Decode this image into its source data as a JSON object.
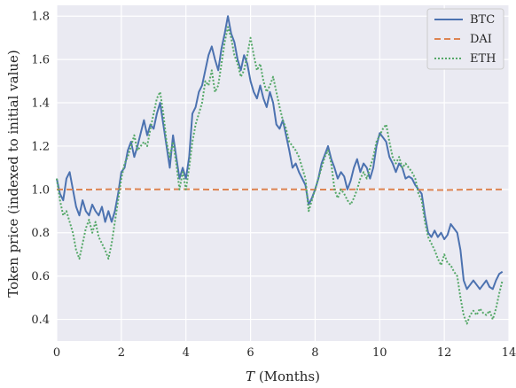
{
  "chart_data": {
    "type": "line",
    "title": "",
    "xlabel_var": "T",
    "xlabel_rest": " (Months)",
    "ylabel": "Token price (indexed to initial value)",
    "xlim": [
      0,
      14
    ],
    "ylim": [
      0.3,
      1.85
    ],
    "xticks": [
      "0",
      "2",
      "4",
      "6",
      "8",
      "10",
      "12",
      "14"
    ],
    "yticks": [
      "0.4",
      "0.6",
      "0.8",
      "1.0",
      "1.2",
      "1.4",
      "1.6",
      "1.8"
    ],
    "grid": true,
    "legend_position": "top-right",
    "series": [
      {
        "name": "BTC",
        "color": "#4c72b0",
        "style": "solid",
        "points": [
          [
            0,
            1.05
          ],
          [
            0.1,
            0.98
          ],
          [
            0.2,
            0.95
          ],
          [
            0.3,
            1.05
          ],
          [
            0.4,
            1.08
          ],
          [
            0.5,
            1.0
          ],
          [
            0.6,
            0.92
          ],
          [
            0.7,
            0.88
          ],
          [
            0.8,
            0.95
          ],
          [
            0.9,
            0.9
          ],
          [
            1.0,
            0.88
          ],
          [
            1.1,
            0.93
          ],
          [
            1.2,
            0.9
          ],
          [
            1.3,
            0.88
          ],
          [
            1.4,
            0.92
          ],
          [
            1.5,
            0.85
          ],
          [
            1.6,
            0.9
          ],
          [
            1.7,
            0.85
          ],
          [
            1.8,
            0.9
          ],
          [
            1.9,
            0.98
          ],
          [
            2.0,
            1.08
          ],
          [
            2.1,
            1.1
          ],
          [
            2.2,
            1.18
          ],
          [
            2.3,
            1.22
          ],
          [
            2.4,
            1.15
          ],
          [
            2.5,
            1.2
          ],
          [
            2.6,
            1.26
          ],
          [
            2.7,
            1.32
          ],
          [
            2.8,
            1.25
          ],
          [
            2.9,
            1.3
          ],
          [
            3.0,
            1.28
          ],
          [
            3.1,
            1.35
          ],
          [
            3.2,
            1.4
          ],
          [
            3.3,
            1.3
          ],
          [
            3.4,
            1.2
          ],
          [
            3.5,
            1.1
          ],
          [
            3.6,
            1.25
          ],
          [
            3.7,
            1.15
          ],
          [
            3.8,
            1.05
          ],
          [
            3.9,
            1.1
          ],
          [
            4.0,
            1.05
          ],
          [
            4.1,
            1.15
          ],
          [
            4.2,
            1.35
          ],
          [
            4.3,
            1.38
          ],
          [
            4.4,
            1.45
          ],
          [
            4.5,
            1.48
          ],
          [
            4.6,
            1.55
          ],
          [
            4.7,
            1.62
          ],
          [
            4.8,
            1.66
          ],
          [
            4.9,
            1.6
          ],
          [
            5.0,
            1.55
          ],
          [
            5.1,
            1.65
          ],
          [
            5.2,
            1.72
          ],
          [
            5.3,
            1.8
          ],
          [
            5.4,
            1.72
          ],
          [
            5.5,
            1.68
          ],
          [
            5.6,
            1.6
          ],
          [
            5.7,
            1.55
          ],
          [
            5.8,
            1.62
          ],
          [
            5.9,
            1.58
          ],
          [
            6.0,
            1.5
          ],
          [
            6.1,
            1.45
          ],
          [
            6.2,
            1.42
          ],
          [
            6.3,
            1.48
          ],
          [
            6.4,
            1.42
          ],
          [
            6.5,
            1.38
          ],
          [
            6.6,
            1.45
          ],
          [
            6.7,
            1.4
          ],
          [
            6.8,
            1.3
          ],
          [
            6.9,
            1.28
          ],
          [
            7.0,
            1.32
          ],
          [
            7.1,
            1.25
          ],
          [
            7.2,
            1.18
          ],
          [
            7.3,
            1.1
          ],
          [
            7.4,
            1.12
          ],
          [
            7.5,
            1.08
          ],
          [
            7.6,
            1.05
          ],
          [
            7.7,
            1.02
          ],
          [
            7.8,
            0.93
          ],
          [
            7.9,
            0.96
          ],
          [
            8.0,
            1.0
          ],
          [
            8.1,
            1.05
          ],
          [
            8.2,
            1.12
          ],
          [
            8.3,
            1.16
          ],
          [
            8.4,
            1.2
          ],
          [
            8.5,
            1.14
          ],
          [
            8.6,
            1.1
          ],
          [
            8.7,
            1.05
          ],
          [
            8.8,
            1.08
          ],
          [
            8.9,
            1.06
          ],
          [
            9.0,
            1.0
          ],
          [
            9.1,
            1.04
          ],
          [
            9.2,
            1.1
          ],
          [
            9.3,
            1.14
          ],
          [
            9.4,
            1.08
          ],
          [
            9.5,
            1.12
          ],
          [
            9.6,
            1.1
          ],
          [
            9.7,
            1.05
          ],
          [
            9.8,
            1.1
          ],
          [
            9.9,
            1.2
          ],
          [
            10.0,
            1.26
          ],
          [
            10.1,
            1.24
          ],
          [
            10.2,
            1.22
          ],
          [
            10.3,
            1.15
          ],
          [
            10.4,
            1.12
          ],
          [
            10.5,
            1.08
          ],
          [
            10.6,
            1.12
          ],
          [
            10.7,
            1.1
          ],
          [
            10.8,
            1.05
          ],
          [
            10.9,
            1.06
          ],
          [
            11.0,
            1.05
          ],
          [
            11.1,
            1.02
          ],
          [
            11.2,
            1.0
          ],
          [
            11.3,
            0.98
          ],
          [
            11.4,
            0.88
          ],
          [
            11.5,
            0.8
          ],
          [
            11.6,
            0.78
          ],
          [
            11.7,
            0.81
          ],
          [
            11.8,
            0.78
          ],
          [
            11.9,
            0.8
          ],
          [
            12.0,
            0.77
          ],
          [
            12.1,
            0.79
          ],
          [
            12.2,
            0.84
          ],
          [
            12.3,
            0.82
          ],
          [
            12.4,
            0.8
          ],
          [
            12.5,
            0.72
          ],
          [
            12.6,
            0.58
          ],
          [
            12.7,
            0.54
          ],
          [
            12.8,
            0.56
          ],
          [
            12.9,
            0.58
          ],
          [
            13.0,
            0.56
          ],
          [
            13.1,
            0.54
          ],
          [
            13.2,
            0.56
          ],
          [
            13.3,
            0.58
          ],
          [
            13.4,
            0.55
          ],
          [
            13.5,
            0.54
          ],
          [
            13.6,
            0.58
          ],
          [
            13.7,
            0.61
          ],
          [
            13.8,
            0.62
          ]
        ]
      },
      {
        "name": "DAI",
        "color": "#dd8452",
        "style": "dashed",
        "points": [
          [
            0,
            1.0
          ],
          [
            1.0,
            0.999
          ],
          [
            2.0,
            1.002
          ],
          [
            3.0,
            1.0
          ],
          [
            4.0,
            1.001
          ],
          [
            5.0,
            0.999
          ],
          [
            6.0,
            1.0
          ],
          [
            7.0,
            1.001
          ],
          [
            8.0,
            0.999
          ],
          [
            9.0,
            1.0
          ],
          [
            10.0,
            1.001
          ],
          [
            11.0,
            0.999
          ],
          [
            12.0,
            0.997
          ],
          [
            13.0,
            1.0
          ],
          [
            13.8,
            1.0
          ]
        ]
      },
      {
        "name": "ETH",
        "color": "#55a868",
        "style": "dotted",
        "points": [
          [
            0,
            1.05
          ],
          [
            0.1,
            0.95
          ],
          [
            0.2,
            0.88
          ],
          [
            0.3,
            0.9
          ],
          [
            0.4,
            0.85
          ],
          [
            0.5,
            0.8
          ],
          [
            0.6,
            0.72
          ],
          [
            0.7,
            0.68
          ],
          [
            0.8,
            0.75
          ],
          [
            0.9,
            0.82
          ],
          [
            1.0,
            0.86
          ],
          [
            1.1,
            0.8
          ],
          [
            1.2,
            0.85
          ],
          [
            1.3,
            0.78
          ],
          [
            1.4,
            0.75
          ],
          [
            1.5,
            0.72
          ],
          [
            1.6,
            0.68
          ],
          [
            1.7,
            0.75
          ],
          [
            1.8,
            0.85
          ],
          [
            1.9,
            0.95
          ],
          [
            2.0,
            1.05
          ],
          [
            2.1,
            1.12
          ],
          [
            2.2,
            1.15
          ],
          [
            2.3,
            1.2
          ],
          [
            2.4,
            1.25
          ],
          [
            2.5,
            1.18
          ],
          [
            2.6,
            1.2
          ],
          [
            2.7,
            1.22
          ],
          [
            2.8,
            1.2
          ],
          [
            2.9,
            1.28
          ],
          [
            3.0,
            1.35
          ],
          [
            3.1,
            1.42
          ],
          [
            3.2,
            1.45
          ],
          [
            3.3,
            1.35
          ],
          [
            3.4,
            1.22
          ],
          [
            3.5,
            1.15
          ],
          [
            3.6,
            1.22
          ],
          [
            3.7,
            1.12
          ],
          [
            3.8,
            1.0
          ],
          [
            3.9,
            1.08
          ],
          [
            4.0,
            1.0
          ],
          [
            4.1,
            1.1
          ],
          [
            4.2,
            1.22
          ],
          [
            4.3,
            1.3
          ],
          [
            4.4,
            1.35
          ],
          [
            4.5,
            1.4
          ],
          [
            4.6,
            1.5
          ],
          [
            4.7,
            1.48
          ],
          [
            4.8,
            1.55
          ],
          [
            4.9,
            1.45
          ],
          [
            5.0,
            1.48
          ],
          [
            5.1,
            1.58
          ],
          [
            5.2,
            1.68
          ],
          [
            5.3,
            1.75
          ],
          [
            5.4,
            1.7
          ],
          [
            5.5,
            1.62
          ],
          [
            5.6,
            1.58
          ],
          [
            5.7,
            1.52
          ],
          [
            5.8,
            1.55
          ],
          [
            5.9,
            1.62
          ],
          [
            6.0,
            1.7
          ],
          [
            6.1,
            1.62
          ],
          [
            6.2,
            1.55
          ],
          [
            6.3,
            1.58
          ],
          [
            6.4,
            1.5
          ],
          [
            6.5,
            1.45
          ],
          [
            6.6,
            1.48
          ],
          [
            6.7,
            1.52
          ],
          [
            6.8,
            1.45
          ],
          [
            6.9,
            1.38
          ],
          [
            7.0,
            1.32
          ],
          [
            7.1,
            1.28
          ],
          [
            7.2,
            1.22
          ],
          [
            7.3,
            1.2
          ],
          [
            7.4,
            1.18
          ],
          [
            7.5,
            1.15
          ],
          [
            7.6,
            1.1
          ],
          [
            7.7,
            1.05
          ],
          [
            7.8,
            0.9
          ],
          [
            7.9,
            0.95
          ],
          [
            8.0,
            1.0
          ],
          [
            8.1,
            1.05
          ],
          [
            8.2,
            1.1
          ],
          [
            8.3,
            1.15
          ],
          [
            8.4,
            1.18
          ],
          [
            8.5,
            1.12
          ],
          [
            8.6,
            1.0
          ],
          [
            8.7,
            0.96
          ],
          [
            8.8,
            1.0
          ],
          [
            8.9,
            0.98
          ],
          [
            9.0,
            0.95
          ],
          [
            9.1,
            0.93
          ],
          [
            9.2,
            0.96
          ],
          [
            9.3,
            1.0
          ],
          [
            9.4,
            1.05
          ],
          [
            9.5,
            1.08
          ],
          [
            9.6,
            1.05
          ],
          [
            9.7,
            1.1
          ],
          [
            9.8,
            1.15
          ],
          [
            9.9,
            1.22
          ],
          [
            10.0,
            1.25
          ],
          [
            10.1,
            1.28
          ],
          [
            10.2,
            1.3
          ],
          [
            10.3,
            1.22
          ],
          [
            10.4,
            1.15
          ],
          [
            10.5,
            1.12
          ],
          [
            10.6,
            1.15
          ],
          [
            10.7,
            1.1
          ],
          [
            10.8,
            1.12
          ],
          [
            10.9,
            1.1
          ],
          [
            11.0,
            1.08
          ],
          [
            11.1,
            1.05
          ],
          [
            11.2,
            0.98
          ],
          [
            11.3,
            0.95
          ],
          [
            11.4,
            0.85
          ],
          [
            11.5,
            0.78
          ],
          [
            11.6,
            0.75
          ],
          [
            11.7,
            0.72
          ],
          [
            11.8,
            0.68
          ],
          [
            11.9,
            0.65
          ],
          [
            12.0,
            0.7
          ],
          [
            12.1,
            0.66
          ],
          [
            12.2,
            0.65
          ],
          [
            12.3,
            0.62
          ],
          [
            12.4,
            0.6
          ],
          [
            12.5,
            0.5
          ],
          [
            12.6,
            0.42
          ],
          [
            12.7,
            0.38
          ],
          [
            12.8,
            0.42
          ],
          [
            12.9,
            0.44
          ],
          [
            13.0,
            0.42
          ],
          [
            13.1,
            0.45
          ],
          [
            13.2,
            0.43
          ],
          [
            13.3,
            0.42
          ],
          [
            13.4,
            0.44
          ],
          [
            13.5,
            0.4
          ],
          [
            13.6,
            0.45
          ],
          [
            13.7,
            0.52
          ],
          [
            13.8,
            0.58
          ]
        ]
      }
    ]
  }
}
